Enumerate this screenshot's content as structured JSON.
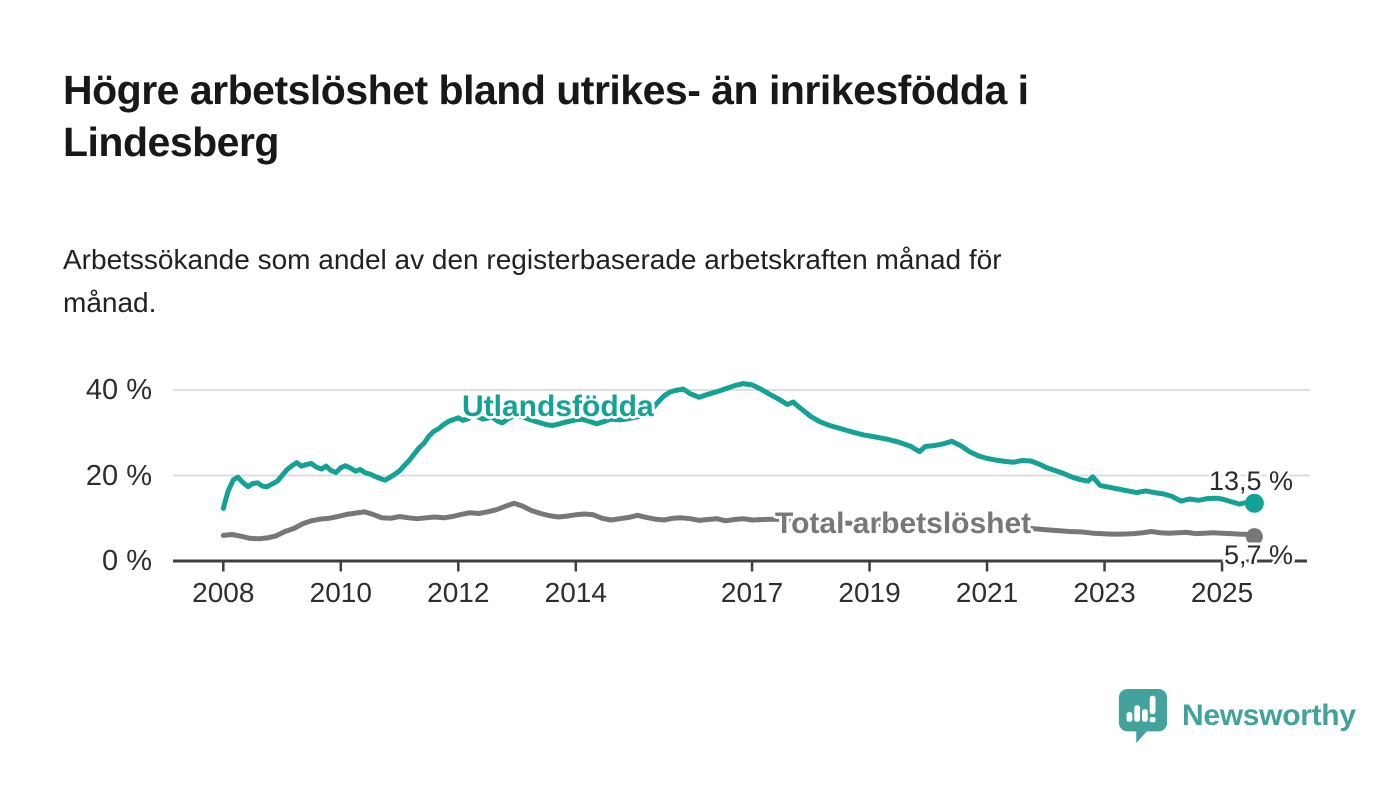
{
  "header": {
    "title": "Högre arbetslöshet bland utrikes- än inrikesfödda i Lindesberg",
    "title_lines": [
      "Högre arbetslöshet bland utrikes- än inrikesfödda i",
      "Lindesberg"
    ],
    "subtitle": "Arbetssökande som andel av den registerbaserade arbetskraften månad för månad.",
    "subtitle_lines": [
      "Arbetssökande som andel av den registerbaserade arbetskraften månad för",
      "månad."
    ]
  },
  "colors": {
    "teal": "#14a294",
    "gray": "#787679",
    "gridline": "#dedede",
    "axis": "#3f3f3f",
    "value_label": "#2b2b2b",
    "logo_teal": "#43a29b"
  },
  "logo": {
    "text": "Newsworthy"
  },
  "chart_data": {
    "type": "line",
    "title": "Högre arbetslöshet bland utrikes- än inrikesfödda i Lindesberg",
    "subtitle": "Arbetssökande som andel av den registerbaserade arbetskraften månad för månad.",
    "xlabel": "",
    "ylabel": "",
    "unit": "%",
    "x_range": [
      2007.2,
      2026.4
    ],
    "ylim": [
      0,
      44
    ],
    "grid": "horizontal",
    "legend_position": "inline-labels",
    "y_ticks": [
      {
        "value": 0,
        "label": "0 %"
      },
      {
        "value": 20,
        "label": "20 %"
      },
      {
        "value": 40,
        "label": "40 %"
      }
    ],
    "x_ticks": [
      {
        "value": 2008,
        "label": "2008"
      },
      {
        "value": 2010,
        "label": "2010"
      },
      {
        "value": 2012,
        "label": "2012"
      },
      {
        "value": 2014,
        "label": "2014"
      },
      {
        "value": 2017,
        "label": "2017"
      },
      {
        "value": 2019,
        "label": "2019"
      },
      {
        "value": 2021,
        "label": "2021"
      },
      {
        "value": 2023,
        "label": "2023"
      },
      {
        "value": 2025,
        "label": "2025"
      }
    ],
    "series": [
      {
        "name": "Utlandsfödda",
        "color": "#14a294",
        "end_label": "13,5 %",
        "end_value": 13.5,
        "end_dot_radius": 9.5,
        "points": [
          [
            2008.0,
            12.3
          ],
          [
            2008.08,
            16.3
          ],
          [
            2008.17,
            19.0
          ],
          [
            2008.25,
            19.6
          ],
          [
            2008.33,
            18.4
          ],
          [
            2008.42,
            17.4
          ],
          [
            2008.5,
            18.1
          ],
          [
            2008.58,
            18.3
          ],
          [
            2008.67,
            17.5
          ],
          [
            2008.75,
            17.4
          ],
          [
            2008.83,
            18.0
          ],
          [
            2008.92,
            18.7
          ],
          [
            2009.0,
            20.0
          ],
          [
            2009.08,
            21.3
          ],
          [
            2009.17,
            22.3
          ],
          [
            2009.25,
            23.0
          ],
          [
            2009.33,
            22.2
          ],
          [
            2009.42,
            22.6
          ],
          [
            2009.5,
            22.8
          ],
          [
            2009.58,
            22.0
          ],
          [
            2009.67,
            21.5
          ],
          [
            2009.75,
            22.2
          ],
          [
            2009.83,
            21.2
          ],
          [
            2009.92,
            20.7
          ],
          [
            2010.0,
            21.8
          ],
          [
            2010.08,
            22.3
          ],
          [
            2010.17,
            21.7
          ],
          [
            2010.25,
            21.0
          ],
          [
            2010.33,
            21.4
          ],
          [
            2010.42,
            20.6
          ],
          [
            2010.5,
            20.3
          ],
          [
            2010.58,
            19.8
          ],
          [
            2010.67,
            19.3
          ],
          [
            2010.75,
            18.9
          ],
          [
            2010.83,
            19.5
          ],
          [
            2010.92,
            20.3
          ],
          [
            2011.0,
            21.1
          ],
          [
            2011.08,
            22.3
          ],
          [
            2011.17,
            23.6
          ],
          [
            2011.25,
            25.0
          ],
          [
            2011.33,
            26.4
          ],
          [
            2011.42,
            27.6
          ],
          [
            2011.5,
            29.2
          ],
          [
            2011.58,
            30.3
          ],
          [
            2011.67,
            31.0
          ],
          [
            2011.75,
            31.9
          ],
          [
            2011.83,
            32.6
          ],
          [
            2011.92,
            33.1
          ],
          [
            2012.0,
            33.5
          ],
          [
            2012.08,
            32.9
          ],
          [
            2012.17,
            33.3
          ],
          [
            2012.25,
            34.1
          ],
          [
            2012.33,
            33.7
          ],
          [
            2012.42,
            33.2
          ],
          [
            2012.5,
            33.4
          ],
          [
            2012.58,
            33.7
          ],
          [
            2012.67,
            32.7
          ],
          [
            2012.75,
            32.3
          ],
          [
            2012.83,
            33.1
          ],
          [
            2012.92,
            33.8
          ],
          [
            2013.0,
            34.1
          ],
          [
            2013.1,
            33.7
          ],
          [
            2013.2,
            33.2
          ],
          [
            2013.3,
            32.7
          ],
          [
            2013.4,
            32.3
          ],
          [
            2013.5,
            31.9
          ],
          [
            2013.6,
            31.7
          ],
          [
            2013.7,
            32.0
          ],
          [
            2013.8,
            32.4
          ],
          [
            2013.9,
            32.7
          ],
          [
            2014.0,
            33.0
          ],
          [
            2014.1,
            33.2
          ],
          [
            2014.2,
            32.8
          ],
          [
            2014.35,
            32.1
          ],
          [
            2014.5,
            32.7
          ],
          [
            2014.6,
            33.2
          ],
          [
            2014.75,
            33.0
          ],
          [
            2014.9,
            33.3
          ],
          [
            2015.0,
            33.6
          ],
          [
            2015.1,
            33.9
          ],
          [
            2015.2,
            34.5
          ],
          [
            2015.3,
            35.6
          ],
          [
            2015.4,
            37.2
          ],
          [
            2015.5,
            38.6
          ],
          [
            2015.6,
            39.5
          ],
          [
            2015.7,
            39.9
          ],
          [
            2015.83,
            40.2
          ],
          [
            2015.95,
            39.1
          ],
          [
            2016.1,
            38.3
          ],
          [
            2016.25,
            39.0
          ],
          [
            2016.4,
            39.6
          ],
          [
            2016.55,
            40.3
          ],
          [
            2016.7,
            41.0
          ],
          [
            2016.85,
            41.5
          ],
          [
            2017.0,
            41.2
          ],
          [
            2017.15,
            40.2
          ],
          [
            2017.3,
            39.0
          ],
          [
            2017.45,
            37.9
          ],
          [
            2017.6,
            36.6
          ],
          [
            2017.7,
            37.2
          ],
          [
            2017.8,
            36.0
          ],
          [
            2017.9,
            34.9
          ],
          [
            2018.0,
            33.8
          ],
          [
            2018.15,
            32.6
          ],
          [
            2018.3,
            31.8
          ],
          [
            2018.5,
            31.0
          ],
          [
            2018.7,
            30.2
          ],
          [
            2018.9,
            29.5
          ],
          [
            2019.1,
            29.0
          ],
          [
            2019.3,
            28.5
          ],
          [
            2019.5,
            27.8
          ],
          [
            2019.7,
            26.8
          ],
          [
            2019.85,
            25.6
          ],
          [
            2019.95,
            26.8
          ],
          [
            2020.1,
            27.0
          ],
          [
            2020.25,
            27.4
          ],
          [
            2020.4,
            28.0
          ],
          [
            2020.55,
            27.0
          ],
          [
            2020.7,
            25.6
          ],
          [
            2020.85,
            24.6
          ],
          [
            2021.0,
            24.0
          ],
          [
            2021.15,
            23.6
          ],
          [
            2021.3,
            23.3
          ],
          [
            2021.45,
            23.1
          ],
          [
            2021.6,
            23.5
          ],
          [
            2021.75,
            23.4
          ],
          [
            2021.9,
            22.6
          ],
          [
            2022.0,
            21.9
          ],
          [
            2022.15,
            21.2
          ],
          [
            2022.3,
            20.5
          ],
          [
            2022.45,
            19.6
          ],
          [
            2022.6,
            19.0
          ],
          [
            2022.72,
            18.7
          ],
          [
            2022.8,
            19.7
          ],
          [
            2022.92,
            17.7
          ],
          [
            2023.1,
            17.2
          ],
          [
            2023.25,
            16.8
          ],
          [
            2023.4,
            16.4
          ],
          [
            2023.55,
            16.0
          ],
          [
            2023.7,
            16.4
          ],
          [
            2023.85,
            16.0
          ],
          [
            2024.0,
            15.7
          ],
          [
            2024.15,
            15.1
          ],
          [
            2024.3,
            14.0
          ],
          [
            2024.45,
            14.5
          ],
          [
            2024.6,
            14.2
          ],
          [
            2024.75,
            14.6
          ],
          [
            2024.9,
            14.7
          ],
          [
            2025.0,
            14.5
          ],
          [
            2025.15,
            13.9
          ],
          [
            2025.3,
            13.3
          ],
          [
            2025.45,
            13.8
          ],
          [
            2025.55,
            13.5
          ]
        ]
      },
      {
        "name": "Total arbetslöshet",
        "color": "#787679",
        "end_label": "5,7 %",
        "end_value": 5.7,
        "end_dot_radius": 8.5,
        "points": [
          [
            2008.0,
            6.0
          ],
          [
            2008.15,
            6.2
          ],
          [
            2008.3,
            5.8
          ],
          [
            2008.45,
            5.3
          ],
          [
            2008.6,
            5.2
          ],
          [
            2008.75,
            5.4
          ],
          [
            2008.9,
            5.9
          ],
          [
            2009.05,
            6.9
          ],
          [
            2009.2,
            7.6
          ],
          [
            2009.35,
            8.7
          ],
          [
            2009.5,
            9.4
          ],
          [
            2009.65,
            9.8
          ],
          [
            2009.8,
            10.0
          ],
          [
            2009.95,
            10.4
          ],
          [
            2010.1,
            10.9
          ],
          [
            2010.25,
            11.2
          ],
          [
            2010.4,
            11.5
          ],
          [
            2010.55,
            10.9
          ],
          [
            2010.7,
            10.1
          ],
          [
            2010.85,
            10.0
          ],
          [
            2011.0,
            10.4
          ],
          [
            2011.15,
            10.1
          ],
          [
            2011.3,
            9.9
          ],
          [
            2011.45,
            10.1
          ],
          [
            2011.6,
            10.3
          ],
          [
            2011.75,
            10.1
          ],
          [
            2011.9,
            10.4
          ],
          [
            2012.05,
            10.9
          ],
          [
            2012.2,
            11.3
          ],
          [
            2012.35,
            11.1
          ],
          [
            2012.5,
            11.5
          ],
          [
            2012.65,
            12.0
          ],
          [
            2012.8,
            12.8
          ],
          [
            2012.95,
            13.5
          ],
          [
            2013.1,
            12.8
          ],
          [
            2013.25,
            11.8
          ],
          [
            2013.4,
            11.1
          ],
          [
            2013.55,
            10.6
          ],
          [
            2013.7,
            10.3
          ],
          [
            2013.85,
            10.5
          ],
          [
            2014.0,
            10.8
          ],
          [
            2014.15,
            11.0
          ],
          [
            2014.3,
            10.8
          ],
          [
            2014.45,
            10.0
          ],
          [
            2014.6,
            9.6
          ],
          [
            2014.75,
            9.9
          ],
          [
            2014.9,
            10.2
          ],
          [
            2015.05,
            10.7
          ],
          [
            2015.2,
            10.2
          ],
          [
            2015.35,
            9.8
          ],
          [
            2015.5,
            9.6
          ],
          [
            2015.65,
            10.0
          ],
          [
            2015.8,
            10.1
          ],
          [
            2015.95,
            9.9
          ],
          [
            2016.1,
            9.5
          ],
          [
            2016.25,
            9.7
          ],
          [
            2016.4,
            9.9
          ],
          [
            2016.55,
            9.4
          ],
          [
            2016.7,
            9.7
          ],
          [
            2016.85,
            9.9
          ],
          [
            2017.0,
            9.6
          ],
          [
            2017.2,
            9.7
          ],
          [
            2017.4,
            9.8
          ],
          [
            2017.6,
            9.5
          ],
          [
            2017.8,
            9.3
          ],
          [
            2018.0,
            9.2
          ],
          [
            2018.25,
            9.0
          ],
          [
            2018.5,
            8.9
          ],
          [
            2018.75,
            8.8
          ],
          [
            2019.0,
            8.7
          ],
          [
            2019.25,
            8.6
          ],
          [
            2019.5,
            8.5
          ],
          [
            2019.75,
            8.6
          ],
          [
            2020.0,
            8.8
          ],
          [
            2020.2,
            9.2
          ],
          [
            2020.4,
            9.4
          ],
          [
            2020.6,
            9.2
          ],
          [
            2020.8,
            8.9
          ],
          [
            2021.0,
            8.6
          ],
          [
            2021.25,
            8.2
          ],
          [
            2021.5,
            7.9
          ],
          [
            2021.75,
            7.6
          ],
          [
            2022.0,
            7.3
          ],
          [
            2022.2,
            7.1
          ],
          [
            2022.4,
            6.9
          ],
          [
            2022.6,
            6.8
          ],
          [
            2022.8,
            6.5
          ],
          [
            2022.95,
            6.4
          ],
          [
            2023.1,
            6.3
          ],
          [
            2023.3,
            6.3
          ],
          [
            2023.5,
            6.4
          ],
          [
            2023.65,
            6.6
          ],
          [
            2023.8,
            6.9
          ],
          [
            2023.95,
            6.6
          ],
          [
            2024.1,
            6.5
          ],
          [
            2024.25,
            6.6
          ],
          [
            2024.4,
            6.7
          ],
          [
            2024.55,
            6.4
          ],
          [
            2024.7,
            6.5
          ],
          [
            2024.85,
            6.6
          ],
          [
            2025.0,
            6.5
          ],
          [
            2025.15,
            6.4
          ],
          [
            2025.3,
            6.3
          ],
          [
            2025.45,
            6.2
          ],
          [
            2025.55,
            5.7
          ]
        ]
      }
    ]
  }
}
